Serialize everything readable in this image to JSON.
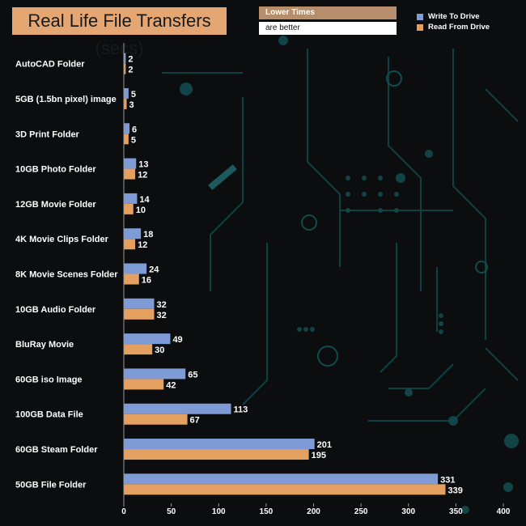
{
  "title": "Real Life File Transfers (secs)",
  "note": {
    "line1": "Lower Times",
    "line2": "are better"
  },
  "chart_data": {
    "type": "bar",
    "orientation": "horizontal",
    "categories": [
      "AutoCAD Folder",
      "5GB (1.5bn pixel) image",
      "3D Print Folder",
      "10GB Photo Folder",
      "12GB Movie Folder",
      "4K Movie Clips Folder",
      "8K Movie Scenes Folder",
      "10GB Audio Folder",
      "BluRay Movie",
      "60GB iso Image",
      "100GB Data File",
      "60GB Steam Folder",
      "50GB File Folder"
    ],
    "series": [
      {
        "name": "Write To  Drive",
        "color": "#7e9bd6",
        "values": [
          2,
          5,
          6,
          13,
          14,
          18,
          24,
          32,
          49,
          65,
          113,
          201,
          331
        ]
      },
      {
        "name": "Read From  Drive",
        "color": "#e4a060",
        "values": [
          2,
          3,
          5,
          12,
          10,
          12,
          16,
          32,
          30,
          42,
          67,
          195,
          339
        ]
      }
    ],
    "xlim": [
      0,
      400
    ],
    "xticks": [
      0,
      50,
      100,
      150,
      200,
      250,
      300,
      350,
      400
    ],
    "legend_position": "top-right"
  }
}
